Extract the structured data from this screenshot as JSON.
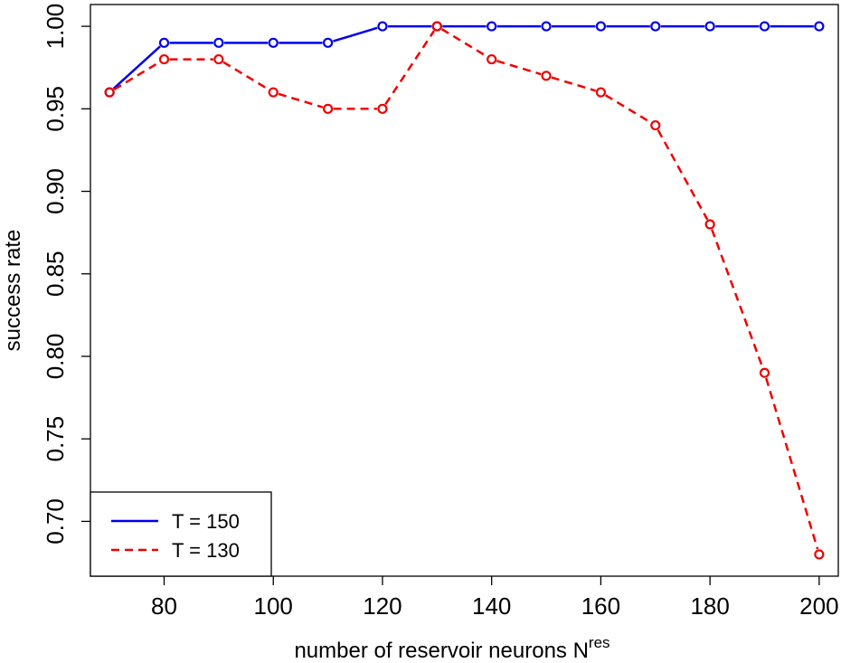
{
  "chart_data": {
    "type": "line",
    "title": "",
    "xlabel": "number of reservoir neurons N",
    "xlabel_superscript": "res",
    "ylabel": "success rate",
    "x": [
      70,
      80,
      90,
      100,
      110,
      120,
      130,
      140,
      150,
      160,
      170,
      180,
      190,
      200
    ],
    "xlim": [
      66.5,
      203.5
    ],
    "ylim": [
      0.6668,
      1.0132
    ],
    "xticks": [
      80,
      100,
      120,
      140,
      160,
      180,
      200
    ],
    "xtick_labels": [
      "80",
      "100",
      "120",
      "140",
      "160",
      "180",
      "200"
    ],
    "yticks": [
      0.7,
      0.75,
      0.8,
      0.85,
      0.9,
      0.95,
      1.0
    ],
    "ytick_labels": [
      "0.70",
      "0.75",
      "0.80",
      "0.85",
      "0.90",
      "0.95",
      "1.00"
    ],
    "grid": false,
    "legend_position": "bottom-left",
    "series": [
      {
        "name": "T = 150",
        "color": "#0000ee",
        "line_style": "solid",
        "marker": "open-circle",
        "values": [
          0.96,
          0.99,
          0.99,
          0.99,
          0.99,
          1.0,
          1.0,
          1.0,
          1.0,
          1.0,
          1.0,
          1.0,
          1.0,
          1.0
        ]
      },
      {
        "name": "T = 130",
        "color": "#ee0000",
        "line_style": "dashed",
        "marker": "open-circle",
        "values": [
          0.96,
          0.98,
          0.98,
          0.96,
          0.95,
          0.95,
          1.0,
          0.98,
          0.97,
          0.96,
          0.94,
          0.88,
          0.79,
          0.68
        ]
      }
    ]
  }
}
